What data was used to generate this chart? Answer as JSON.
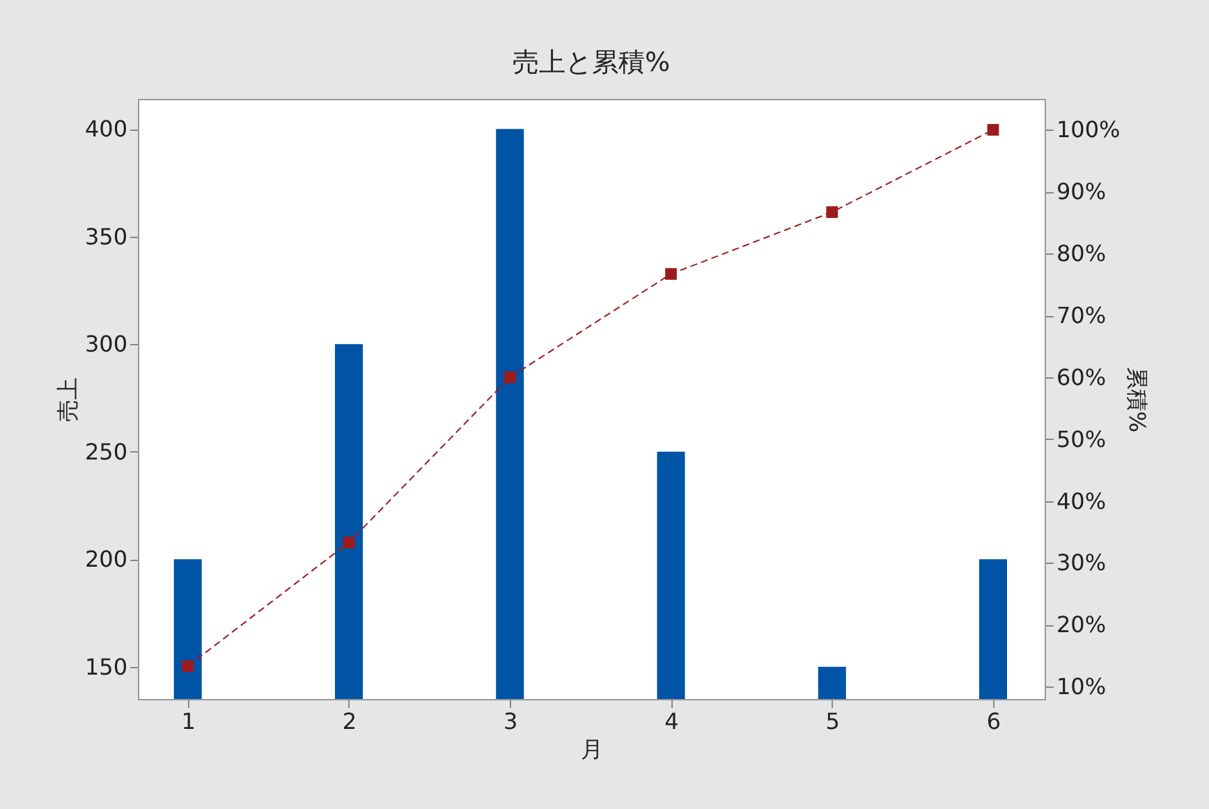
{
  "chart_data": {
    "type": "bar",
    "title": "売上と累積%",
    "xlabel": "月",
    "ylabel": "売上",
    "y2label": "累積%",
    "x": [
      1,
      2,
      3,
      4,
      5,
      6
    ],
    "series": [
      {
        "color": "#0054a6",
        "values": [
          200,
          300,
          400,
          250,
          150,
          200
        ]
      },
      {
        "type": "line",
        "axis": "y2",
        "color": "#9e1b1b",
        "values": [
          13.3,
          33.3,
          60,
          76.7,
          86.7,
          100
        ]
      }
    ],
    "xlim": [
      0.69,
      6.32
    ],
    "xticks": [
      1,
      2,
      3,
      4,
      5,
      6
    ],
    "ylim": [
      135,
      414
    ],
    "yticks": [
      150,
      200,
      250,
      300,
      350,
      400
    ],
    "y2lim": [
      8,
      105
    ],
    "y2ticks": [
      {
        "value": 10,
        "label": "10%"
      },
      {
        "value": 20,
        "label": "20%"
      },
      {
        "value": 30,
        "label": "30%"
      },
      {
        "value": 40,
        "label": "40%"
      },
      {
        "value": 50,
        "label": "50%"
      },
      {
        "value": 60,
        "label": "60%"
      },
      {
        "value": 70,
        "label": "70%"
      },
      {
        "value": 80,
        "label": "80%"
      },
      {
        "value": 90,
        "label": "90%"
      },
      {
        "value": 100,
        "label": "100%"
      }
    ],
    "marker": "square",
    "line_style": "dashed",
    "grid": false
  }
}
